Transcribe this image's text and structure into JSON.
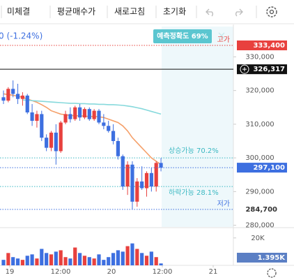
{
  "toolbar": {
    "items": [
      "미체결",
      "평균매수가",
      "새로고침",
      "초기화"
    ]
  },
  "change_text": "0 (-1.24%)",
  "accuracy_badge": "예측정확도 69%",
  "chart_data": {
    "type": "candlestick",
    "up_color": "#e8413e",
    "down_color": "#3d6fe0",
    "ylim": [
      279500,
      339000
    ],
    "yticks": [
      {
        "value": 330000,
        "label": "330,000"
      },
      {
        "value": 320000,
        "label": "320,000"
      },
      {
        "value": 310000,
        "label": "310,000"
      },
      {
        "value": 300000,
        "label": "300,000"
      },
      {
        "value": 290000,
        "label": "290,000"
      },
      {
        "value": 280000,
        "label": "280,000"
      }
    ],
    "x_labels": [
      "19",
      "12:00",
      "20",
      "12:00",
      "21"
    ],
    "candles": [
      [
        318000,
        320000,
        316000,
        317000
      ],
      [
        317000,
        321000,
        316500,
        320500
      ],
      [
        320500,
        323000,
        318000,
        319000
      ],
      [
        319000,
        322000,
        316000,
        317500
      ],
      [
        317500,
        319500,
        315500,
        318500
      ],
      [
        318500,
        319000,
        313000,
        313500
      ],
      [
        313500,
        316000,
        309500,
        311000
      ],
      [
        311000,
        314000,
        309000,
        313000
      ],
      [
        313000,
        314000,
        305000,
        306000
      ],
      [
        306000,
        307000,
        302000,
        303000
      ],
      [
        303000,
        308000,
        302000,
        307500
      ],
      [
        307500,
        310000,
        298000,
        302000
      ],
      [
        302000,
        311000,
        301500,
        310500
      ],
      [
        310500,
        314000,
        310000,
        313000
      ],
      [
        313000,
        315000,
        310500,
        311500
      ],
      [
        311500,
        315500,
        311000,
        315000
      ],
      [
        315000,
        316000,
        311000,
        312000
      ],
      [
        312000,
        315000,
        311500,
        314500
      ],
      [
        314500,
        315000,
        311000,
        311500
      ],
      [
        311500,
        314500,
        311000,
        314000
      ],
      [
        314000,
        314500,
        310000,
        310500
      ],
      [
        310500,
        313000,
        308500,
        309500
      ],
      [
        309500,
        311000,
        307500,
        308000
      ],
      [
        308000,
        310000,
        304000,
        305000
      ],
      [
        305000,
        306000,
        299500,
        300500
      ],
      [
        300500,
        301000,
        290500,
        291500
      ],
      [
        291500,
        299000,
        289000,
        298000
      ],
      [
        298000,
        299000,
        284700,
        287000
      ],
      [
        287000,
        294000,
        285500,
        293000
      ],
      [
        293000,
        297500,
        290500,
        291000
      ],
      [
        291000,
        296000,
        288500,
        295500
      ],
      [
        295500,
        297000,
        290000,
        291500
      ],
      [
        291500,
        299000,
        290000,
        298500
      ],
      [
        298500,
        300000,
        296000,
        297100
      ]
    ],
    "moving_averages": [
      {
        "color": "#f5a06a",
        "values": [
          319000,
          318800,
          318600,
          318300,
          318000,
          317500,
          317000,
          316500,
          315800,
          315000,
          314000,
          313500,
          313000,
          312800,
          312600,
          312500,
          312500,
          312400,
          312300,
          312300,
          312200,
          312000,
          311500,
          311000,
          310500,
          309500,
          308000,
          306000,
          304500,
          303000,
          301500,
          300000,
          299000,
          298000
        ]
      },
      {
        "color": "#86d9dc",
        "values": [
          null,
          null,
          null,
          null,
          317200,
          317100,
          317000,
          316900,
          316800,
          316700,
          316600,
          316500,
          316400,
          316300,
          316200,
          316200,
          316100,
          316100,
          316000,
          316000,
          315900,
          315900,
          315800,
          315800,
          315700,
          315600,
          315400,
          315200,
          314900,
          314600,
          314200,
          313800,
          313400,
          313000
        ]
      }
    ],
    "price_lines": [
      {
        "label": "고가",
        "value": 333400,
        "value_label": "333,400",
        "color": "#e8413e"
      },
      {
        "value": 326317,
        "value_label": "326,317",
        "color": "#111111"
      },
      {
        "value": 297100,
        "value_label": "297,100",
        "color": "#3d6fe0"
      },
      {
        "label": "저가",
        "value": 284700,
        "value_label": "284,700",
        "color": "#3d6fe0"
      }
    ],
    "prediction": {
      "color": "#3bb8c2",
      "up_label": "상승가능 70.2%",
      "up_level": 300000,
      "down_label": "하락가능 28.1%",
      "down_level": 291500
    },
    "volume": {
      "ylim": [
        0,
        26500
      ],
      "yticks": [
        {
          "value": 20000,
          "label": "20K"
        }
      ],
      "last_label": "1.395K",
      "values": [
        4000,
        9000,
        6000,
        5000,
        4000,
        7000,
        8000,
        5000,
        12000,
        9000,
        8000,
        10000,
        11000,
        6000,
        5000,
        13000,
        9000,
        7000,
        6000,
        5000,
        8000,
        4000,
        6000,
        9000,
        11000,
        10000,
        14000,
        16000,
        12000,
        9000,
        7000,
        10000,
        6000,
        1395
      ]
    }
  }
}
